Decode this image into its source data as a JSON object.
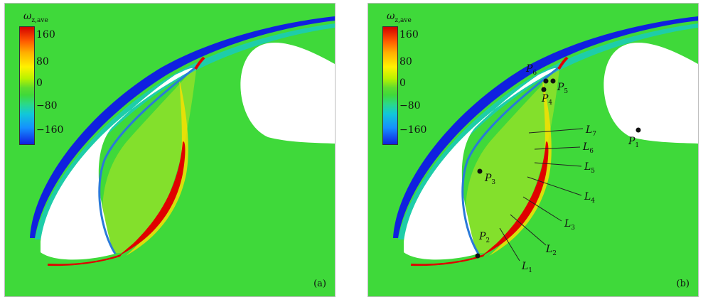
{
  "colorbar": {
    "symbol": "ω",
    "subscript": "z,ave",
    "ticks": [
      "160",
      "80",
      "0",
      "−80",
      "−160"
    ]
  },
  "panels": [
    {
      "tag": "(a)"
    },
    {
      "tag": "(b)"
    }
  ],
  "points": [
    {
      "name": "P",
      "sub": "1"
    },
    {
      "name": "P",
      "sub": "2"
    },
    {
      "name": "P",
      "sub": "3"
    },
    {
      "name": "P",
      "sub": "4"
    },
    {
      "name": "P",
      "sub": "5"
    },
    {
      "name": "P",
      "sub": "6"
    }
  ],
  "lines": [
    {
      "name": "L",
      "sub": "1"
    },
    {
      "name": "L",
      "sub": "2"
    },
    {
      "name": "L",
      "sub": "3"
    },
    {
      "name": "L",
      "sub": "4"
    },
    {
      "name": "L",
      "sub": "5"
    },
    {
      "name": "L",
      "sub": "6"
    },
    {
      "name": "L",
      "sub": "7"
    }
  ],
  "colors": {
    "background_field": "#3fd93a",
    "positive_vorticity": "#e00000",
    "negative_vorticity": "#1020e0"
  }
}
